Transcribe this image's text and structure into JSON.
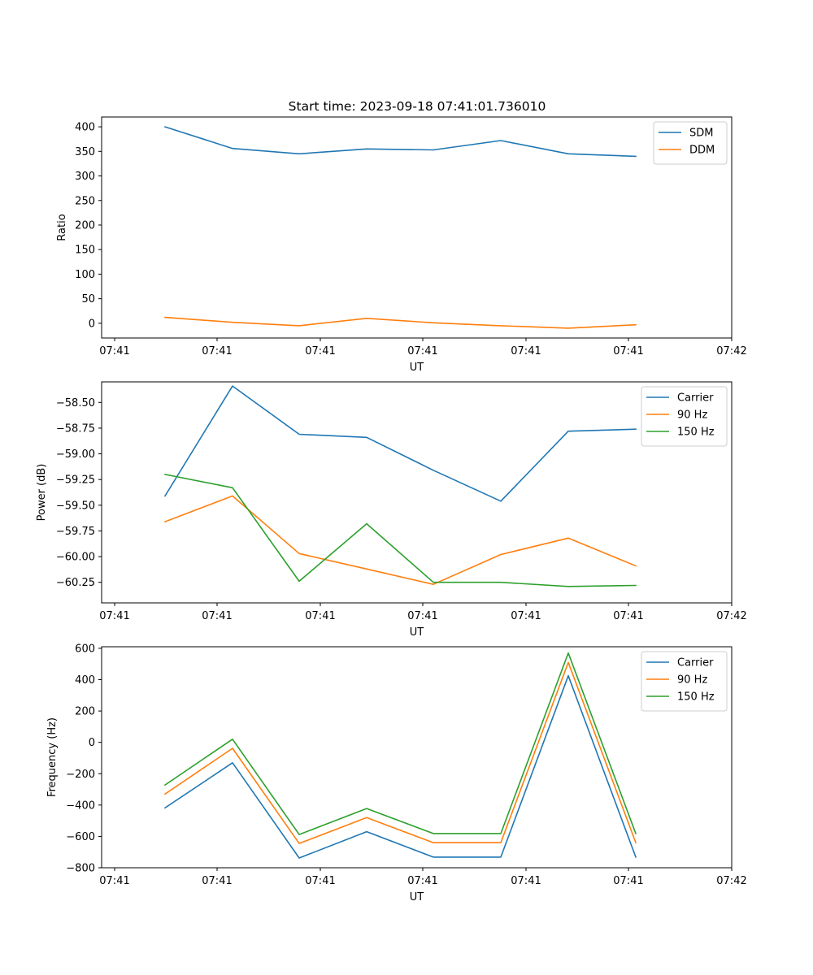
{
  "figure": {
    "title": "Start time: 2023-09-18 07:41:01.736010"
  },
  "chart_data": [
    {
      "type": "line",
      "xlabel": "UT",
      "ylabel": "Ratio",
      "x_tick_labels": [
        "07:41",
        "07:41",
        "07:41",
        "07:41",
        "07:41",
        "07:41",
        "07:42"
      ],
      "y_ticks": [
        0,
        50,
        100,
        150,
        200,
        250,
        300,
        350,
        400
      ],
      "y_tick_labels": [
        "0",
        "50",
        "100",
        "150",
        "200",
        "250",
        "300",
        "350",
        "400"
      ],
      "ylim": [
        -30,
        420
      ],
      "legend_position": "top-right",
      "series": [
        {
          "name": "SDM",
          "color": "#1f77b4",
          "values": [
            400,
            356,
            345,
            355,
            353,
            372,
            345,
            340
          ]
        },
        {
          "name": "DDM",
          "color": "#ff7f0e",
          "values": [
            12,
            2,
            -5,
            10,
            1,
            -5,
            -10,
            -3
          ]
        }
      ]
    },
    {
      "type": "line",
      "xlabel": "UT",
      "ylabel": "Power (dB)",
      "x_tick_labels": [
        "07:41",
        "07:41",
        "07:41",
        "07:41",
        "07:41",
        "07:41",
        "07:42"
      ],
      "y_ticks": [
        -60.25,
        -60.0,
        -59.75,
        -59.5,
        -59.25,
        -59.0,
        -58.75,
        -58.5
      ],
      "y_tick_labels": [
        "−60.25",
        "−60.00",
        "−59.75",
        "−59.50",
        "−59.25",
        "−59.00",
        "−58.75",
        "−58.50"
      ],
      "ylim": [
        -60.45,
        -58.3
      ],
      "legend_position": "top-right",
      "series": [
        {
          "name": "Carrier",
          "color": "#1f77b4",
          "values": [
            -59.41,
            -58.34,
            -58.81,
            -58.84,
            -59.16,
            -59.46,
            -58.78,
            -58.76
          ]
        },
        {
          "name": "90 Hz",
          "color": "#ff7f0e",
          "values": [
            -59.66,
            -59.41,
            -59.97,
            -60.12,
            -60.27,
            -59.98,
            -59.82,
            -60.09
          ]
        },
        {
          "name": "150 Hz",
          "color": "#2ca02c",
          "values": [
            -59.2,
            -59.33,
            -60.24,
            -59.68,
            -60.25,
            -60.25,
            -60.29,
            -60.28
          ]
        }
      ]
    },
    {
      "type": "line",
      "xlabel": "UT",
      "ylabel": "Frequency (Hz)",
      "x_tick_labels": [
        "07:41",
        "07:41",
        "07:41",
        "07:41",
        "07:41",
        "07:41",
        "07:42"
      ],
      "y_ticks": [
        -800,
        -600,
        -400,
        -200,
        0,
        200,
        400,
        600
      ],
      "y_tick_labels": [
        "−800",
        "−600",
        "−400",
        "−200",
        "0",
        "200",
        "400",
        "600"
      ],
      "ylim": [
        -800,
        610
      ],
      "legend_position": "top-right",
      "series": [
        {
          "name": "Carrier",
          "color": "#1f77b4",
          "values": [
            -418,
            -130,
            -738,
            -570,
            -732,
            -732,
            425,
            -732
          ]
        },
        {
          "name": "90 Hz",
          "color": "#ff7f0e",
          "values": [
            -330,
            -38,
            -645,
            -480,
            -640,
            -640,
            510,
            -640
          ]
        },
        {
          "name": "150 Hz",
          "color": "#2ca02c",
          "values": [
            -272,
            20,
            -588,
            -422,
            -582,
            -582,
            570,
            -582
          ]
        }
      ]
    }
  ]
}
